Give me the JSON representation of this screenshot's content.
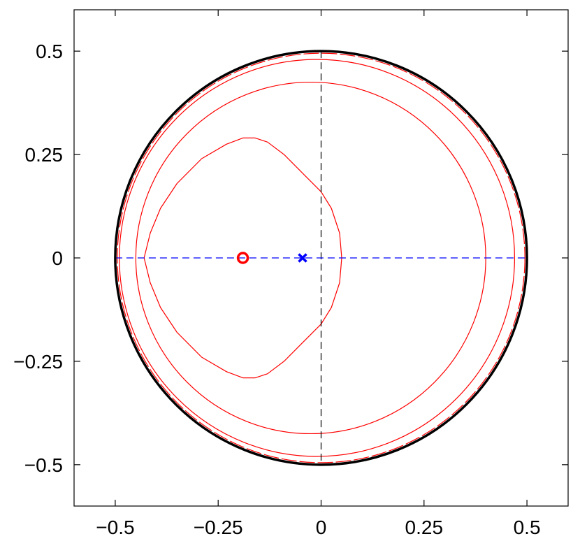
{
  "chart_data": {
    "type": "line",
    "title": "",
    "xlabel": "",
    "ylabel": "",
    "xlim": [
      -0.6,
      0.6
    ],
    "ylim": [
      -0.6,
      0.6
    ],
    "grid": false,
    "legend": "none",
    "x_ticks": [
      -0.5,
      -0.25,
      0,
      0.25,
      0.5
    ],
    "x_tick_labels": [
      "−0.5",
      "−0.25",
      "0",
      "0.25",
      "0.5"
    ],
    "y_ticks": [
      -0.5,
      -0.25,
      0,
      0.25,
      0.5
    ],
    "y_tick_labels": [
      "−0.5",
      "−0.25",
      "0",
      "0.25",
      "0.5"
    ],
    "boundary_circle": {
      "cx": 0,
      "cy": 0,
      "r": 0.5,
      "color": "#000000"
    },
    "axis_lines": [
      {
        "orientation": "vertical",
        "at": 0,
        "color": "#000000",
        "style": "dashed"
      },
      {
        "orientation": "horizontal",
        "at": 0,
        "color": "#0000ff",
        "style": "dashed"
      }
    ],
    "contours": [
      {
        "color": "#ff0000",
        "points": [
          [
            0.05,
            0
          ],
          [
            0.045,
            0.06
          ],
          [
            0.025,
            0.12
          ],
          [
            0.0,
            0.16
          ],
          [
            -0.04,
            0.2
          ],
          [
            -0.09,
            0.25
          ],
          [
            -0.13,
            0.28
          ],
          [
            -0.16,
            0.29
          ],
          [
            -0.19,
            0.29
          ],
          [
            -0.23,
            0.275
          ],
          [
            -0.29,
            0.24
          ],
          [
            -0.35,
            0.18
          ],
          [
            -0.39,
            0.12
          ],
          [
            -0.415,
            0.06
          ],
          [
            -0.43,
            0
          ],
          [
            -0.415,
            -0.06
          ],
          [
            -0.39,
            -0.12
          ],
          [
            -0.35,
            -0.18
          ],
          [
            -0.29,
            -0.24
          ],
          [
            -0.23,
            -0.275
          ],
          [
            -0.19,
            -0.29
          ],
          [
            -0.16,
            -0.29
          ],
          [
            -0.13,
            -0.28
          ],
          [
            -0.09,
            -0.25
          ],
          [
            -0.04,
            -0.2
          ],
          [
            0.0,
            -0.16
          ],
          [
            0.025,
            -0.12
          ],
          [
            0.045,
            -0.06
          ],
          [
            0.05,
            0
          ]
        ]
      },
      {
        "color": "#ff0000",
        "circle": {
          "cx": -0.025,
          "cy": 0,
          "r": 0.425
        }
      },
      {
        "color": "#ff0000",
        "circle": {
          "cx": -0.01,
          "cy": 0,
          "r": 0.48
        }
      },
      {
        "color": "#ff0000",
        "style": "dashed",
        "circle": {
          "cx": 0,
          "cy": 0,
          "r": 0.495
        }
      }
    ],
    "markers": [
      {
        "shape": "circle",
        "x": -0.19,
        "y": 0,
        "color": "#ff0000"
      },
      {
        "shape": "cross",
        "x": -0.045,
        "y": 0,
        "color": "#0000ff"
      }
    ]
  }
}
